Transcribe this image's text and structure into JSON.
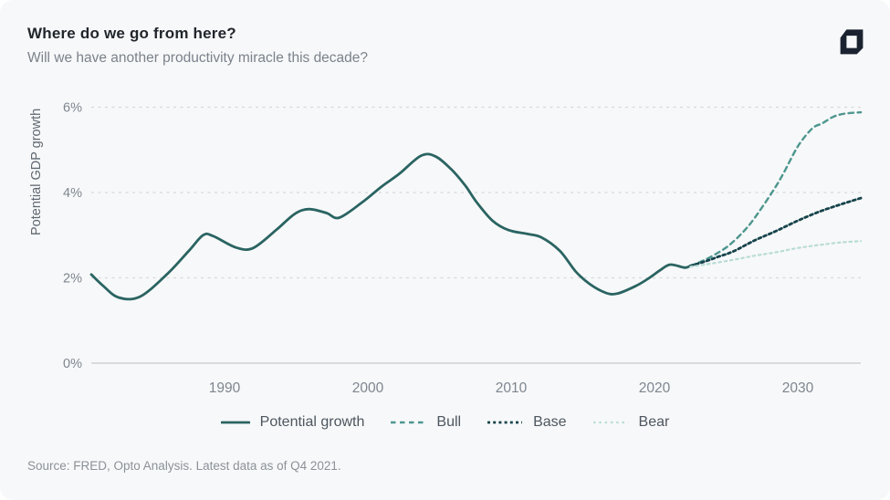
{
  "header": {
    "title": "Where do we go from here?",
    "subtitle": "Will we have another productivity miracle this decade?"
  },
  "logo": {
    "icon": "opto-logo",
    "color": "#1b2330"
  },
  "footer": {
    "source": "Source: FRED, Opto Analysis. Latest data as of Q4 2021."
  },
  "chart_data": {
    "type": "line",
    "title": "Where do we go from here?",
    "subtitle": "Will we have another productivity miracle this decade?",
    "xlabel": "",
    "ylabel": "Potential GDP growth",
    "xlim": [
      1980.7,
      2034.5
    ],
    "ylim": [
      0,
      6.4
    ],
    "grid": "horizontal-dashed",
    "legend_position": "bottom",
    "grid_color": "#d6d9dc",
    "axis_color": "#c6cacd",
    "tick_color": "#7e868f",
    "x_ticks": [
      {
        "value": 1990,
        "label": "1990"
      },
      {
        "value": 2000,
        "label": "2000"
      },
      {
        "value": 2010,
        "label": "2010"
      },
      {
        "value": 2020,
        "label": "2020"
      },
      {
        "value": 2030,
        "label": "2030"
      }
    ],
    "y_ticks": [
      {
        "value": 6,
        "label": "6%"
      },
      {
        "value": 4,
        "label": "4%"
      },
      {
        "value": 2,
        "label": "2%"
      },
      {
        "value": 0,
        "label": "0%"
      }
    ],
    "series": [
      {
        "name": "Potential growth",
        "style": "solid",
        "color": "#2a6462",
        "width": 2.8,
        "dash": null,
        "points": [
          [
            1980.7,
            2.08
          ],
          [
            1981.5,
            1.82
          ],
          [
            1982.6,
            1.54
          ],
          [
            1984.1,
            1.56
          ],
          [
            1986.0,
            2.09
          ],
          [
            1987.5,
            2.63
          ],
          [
            1988.5,
            3.0
          ],
          [
            1989.2,
            2.98
          ],
          [
            1990.8,
            2.71
          ],
          [
            1992.0,
            2.7
          ],
          [
            1993.6,
            3.12
          ],
          [
            1994.9,
            3.5
          ],
          [
            1995.9,
            3.61
          ],
          [
            1997.1,
            3.52
          ],
          [
            1998.0,
            3.41
          ],
          [
            1999.6,
            3.77
          ],
          [
            2001.0,
            4.15
          ],
          [
            2002.2,
            4.44
          ],
          [
            2003.7,
            4.86
          ],
          [
            2004.7,
            4.85
          ],
          [
            2005.8,
            4.55
          ],
          [
            2006.8,
            4.16
          ],
          [
            2007.6,
            3.77
          ],
          [
            2008.7,
            3.34
          ],
          [
            2009.8,
            3.12
          ],
          [
            2011.1,
            3.03
          ],
          [
            2012.1,
            2.95
          ],
          [
            2013.4,
            2.63
          ],
          [
            2014.5,
            2.15
          ],
          [
            2015.5,
            1.85
          ],
          [
            2016.6,
            1.65
          ],
          [
            2017.4,
            1.63
          ],
          [
            2018.7,
            1.81
          ],
          [
            2019.6,
            1.99
          ],
          [
            2020.4,
            2.18
          ],
          [
            2021.1,
            2.31
          ],
          [
            2022.1,
            2.24
          ],
          [
            2022.5,
            2.28
          ]
        ]
      },
      {
        "name": "Bull",
        "style": "dashed",
        "color": "#4d968f",
        "width": 2.4,
        "dash": "5.5 4.5",
        "points": [
          [
            2022.5,
            2.28
          ],
          [
            2023.5,
            2.42
          ],
          [
            2024.5,
            2.6
          ],
          [
            2025.3,
            2.79
          ],
          [
            2026.2,
            3.08
          ],
          [
            2027.0,
            3.41
          ],
          [
            2028.2,
            4.0
          ],
          [
            2029.0,
            4.45
          ],
          [
            2030.0,
            5.08
          ],
          [
            2031.0,
            5.5
          ],
          [
            2031.7,
            5.62
          ],
          [
            2032.5,
            5.78
          ],
          [
            2033.3,
            5.85
          ],
          [
            2034.4,
            5.88
          ]
        ]
      },
      {
        "name": "Base",
        "style": "dotted",
        "color": "#16434b",
        "width": 2.8,
        "dash": "3 3.2",
        "points": [
          [
            2022.5,
            2.28
          ],
          [
            2023.5,
            2.38
          ],
          [
            2024.5,
            2.5
          ],
          [
            2025.5,
            2.62
          ],
          [
            2027.0,
            2.88
          ],
          [
            2028.5,
            3.1
          ],
          [
            2030.0,
            3.34
          ],
          [
            2031.5,
            3.55
          ],
          [
            2032.8,
            3.7
          ],
          [
            2034.4,
            3.87
          ]
        ]
      },
      {
        "name": "Bear",
        "style": "dotted",
        "color": "#b9dcd6",
        "width": 2.2,
        "dash": "2.5 3.8",
        "points": [
          [
            2022.5,
            2.26
          ],
          [
            2023.5,
            2.31
          ],
          [
            2025.3,
            2.41
          ],
          [
            2027.0,
            2.52
          ],
          [
            2028.5,
            2.6
          ],
          [
            2030.0,
            2.7
          ],
          [
            2031.5,
            2.77
          ],
          [
            2033.0,
            2.83
          ],
          [
            2034.4,
            2.86
          ]
        ]
      }
    ]
  }
}
